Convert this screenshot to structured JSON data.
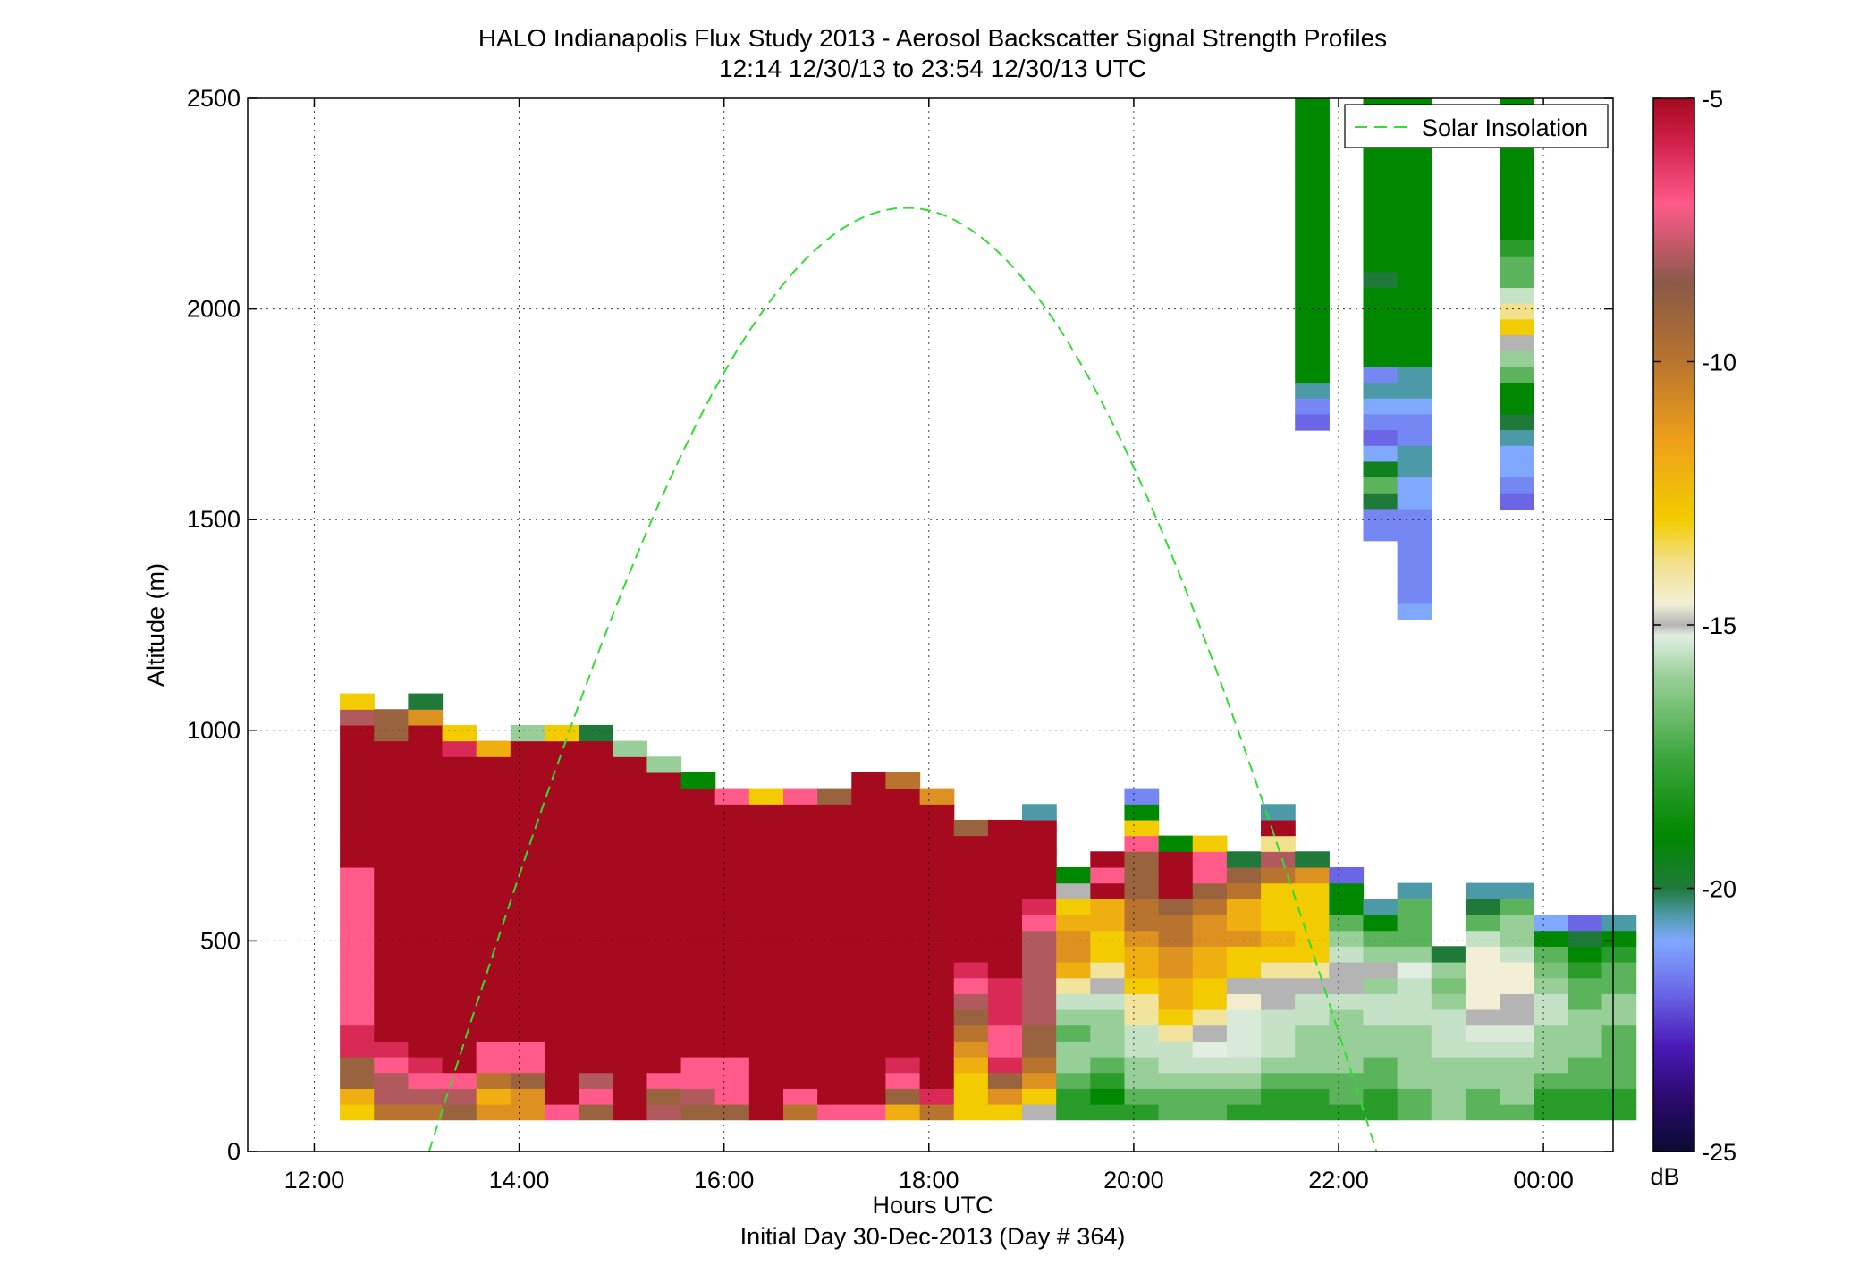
{
  "chart_data": {
    "type": "heatmap",
    "title": "HALO Indianapolis Flux Study 2013 - Aerosol Backscatter Signal Strength Profiles",
    "subtitle": "12:14 12/30/13 to 23:54 12/30/13  UTC",
    "xlabel": "Hours UTC",
    "xlabel2": "Initial Day 30-Dec-2013 (Day # 364)",
    "ylabel": "Altitude (m)",
    "xlim": [
      11.35,
      24.68
    ],
    "ylim": [
      0,
      2500
    ],
    "x_ticks": [
      12,
      14,
      16,
      18,
      20,
      22,
      24
    ],
    "x_tick_labels": [
      "12:00",
      "14:00",
      "16:00",
      "18:00",
      "20:00",
      "22:00",
      "00:00"
    ],
    "y_ticks": [
      0,
      500,
      1000,
      1500,
      2000,
      2500
    ],
    "y_tick_labels": [
      "0",
      "500",
      "1000",
      "1500",
      "2000",
      "2500"
    ],
    "grid": true,
    "legend": {
      "placement": "top-right",
      "entries": [
        {
          "label": "Solar Insolation",
          "color": "#33dd33",
          "style": "dashed"
        }
      ]
    },
    "colorbar": {
      "label": "dB",
      "range": [
        -25,
        -5
      ],
      "ticks": [
        -5,
        -10,
        -15,
        -20,
        -25
      ],
      "tick_labels": [
        "-5",
        "-10",
        "-15",
        "-20",
        "-25"
      ],
      "stops": [
        {
          "v": -25,
          "c": "#0b0b33"
        },
        {
          "v": -24,
          "c": "#2b0a6e"
        },
        {
          "v": -23,
          "c": "#4a1ab8"
        },
        {
          "v": -22,
          "c": "#6a66e6"
        },
        {
          "v": -21,
          "c": "#80a8ff"
        },
        {
          "v": -20.5,
          "c": "#4c9aa8"
        },
        {
          "v": -20,
          "c": "#1f7a3a"
        },
        {
          "v": -19,
          "c": "#008800"
        },
        {
          "v": -17.5,
          "c": "#3da63d"
        },
        {
          "v": -16,
          "c": "#98cf98"
        },
        {
          "v": -15.2,
          "c": "#e2eee2"
        },
        {
          "v": -15,
          "c": "#b4b4b4"
        },
        {
          "v": -14.6,
          "c": "#f3efd6"
        },
        {
          "v": -13.8,
          "c": "#f2e08a"
        },
        {
          "v": -13,
          "c": "#f2cc00"
        },
        {
          "v": -11.5,
          "c": "#eea01a"
        },
        {
          "v": -10,
          "c": "#b8742e"
        },
        {
          "v": -8.5,
          "c": "#8a5a48"
        },
        {
          "v": -7,
          "c": "#ff5a8a"
        },
        {
          "v": -5.8,
          "c": "#d0204a"
        },
        {
          "v": -5,
          "c": "#a50a1e"
        }
      ]
    },
    "grid_cells": {
      "t_start": 12.25,
      "dt": 0.333,
      "z_start": 75,
      "dz": 37.5,
      "cols": [
        [
          -13,
          -12,
          -9,
          -9,
          -6,
          -6,
          -7,
          -7,
          -7,
          -7,
          -7,
          -7,
          -7,
          -7,
          -7,
          -7,
          -5,
          -5,
          -5,
          -5,
          -5,
          -5,
          -5,
          -5,
          -5,
          -8,
          -13
        ],
        [
          -10,
          -8,
          -8,
          -7,
          -6,
          -5,
          -5,
          -5,
          -5,
          -5,
          -5,
          -5,
          -5,
          -5,
          -5,
          -5,
          -5,
          -5,
          -5,
          -5,
          -5,
          -5,
          -5,
          -5,
          -9,
          -9
        ],
        [
          -10,
          -8,
          -7,
          -6,
          -5,
          -5,
          -5,
          -5,
          -5,
          -5,
          -5,
          -5,
          -5,
          -5,
          -5,
          -5,
          -5,
          -5,
          -5,
          -5,
          -5,
          -5,
          -5,
          -5,
          -5,
          -11,
          -20
        ],
        [
          -9,
          -8,
          -7,
          -5,
          -5,
          -5,
          -5,
          -5,
          -5,
          -5,
          -5,
          -5,
          -5,
          -5,
          -5,
          -5,
          -5,
          -5,
          -5,
          -5,
          -5,
          -5,
          -5,
          -6,
          -13
        ],
        [
          -11,
          -12,
          -10,
          -7,
          -7,
          -5,
          -5,
          -5,
          -5,
          -5,
          -5,
          -5,
          -5,
          -5,
          -5,
          -5,
          -5,
          -5,
          -5,
          -5,
          -5,
          -5,
          -5,
          -12
        ],
        [
          -11,
          -11,
          -9,
          -7,
          -7,
          -5,
          -5,
          -5,
          -5,
          -5,
          -5,
          -5,
          -5,
          -5,
          -5,
          -5,
          -5,
          -5,
          -5,
          -5,
          -5,
          -5,
          -5,
          -5,
          -16
        ],
        [
          -7,
          -5,
          -5,
          -5,
          -5,
          -5,
          -5,
          -5,
          -5,
          -5,
          -5,
          -5,
          -5,
          -5,
          -5,
          -5,
          -5,
          -5,
          -5,
          -5,
          -5,
          -5,
          -5,
          -5,
          -13
        ],
        [
          -9,
          -7,
          -8,
          -5,
          -5,
          -5,
          -5,
          -5,
          -5,
          -5,
          -5,
          -5,
          -5,
          -5,
          -5,
          -5,
          -5,
          -5,
          -5,
          -5,
          -5,
          -5,
          -5,
          -5,
          -20
        ],
        [
          -5,
          -5,
          -5,
          -5,
          -5,
          -5,
          -5,
          -5,
          -5,
          -5,
          -5,
          -5,
          -5,
          -5,
          -5,
          -5,
          -5,
          -5,
          -5,
          -5,
          -5,
          -5,
          -5,
          -16
        ],
        [
          -8,
          -9,
          -7,
          -5,
          -5,
          -5,
          -5,
          -5,
          -5,
          -5,
          -5,
          -5,
          -5,
          -5,
          -5,
          -5,
          -5,
          -5,
          -5,
          -5,
          -5,
          -5,
          -16
        ],
        [
          -9,
          -8,
          -7,
          -7,
          -5,
          -5,
          -5,
          -5,
          -5,
          -5,
          -5,
          -5,
          -5,
          -5,
          -5,
          -5,
          -5,
          -5,
          -5,
          -5,
          -5,
          -19
        ],
        [
          -9,
          -7,
          -7,
          -7,
          -5,
          -5,
          -5,
          -5,
          -5,
          -5,
          -5,
          -5,
          -5,
          -5,
          -5,
          -5,
          -5,
          -5,
          -5,
          -5,
          -7
        ],
        [
          -5,
          -5,
          -5,
          -5,
          -5,
          -5,
          -5,
          -5,
          -5,
          -5,
          -5,
          -5,
          -5,
          -5,
          -5,
          -5,
          -5,
          -5,
          -5,
          -5,
          -13
        ],
        [
          -10,
          -7,
          -5,
          -5,
          -5,
          -5,
          -5,
          -5,
          -5,
          -5,
          -5,
          -5,
          -5,
          -5,
          -5,
          -5,
          -5,
          -5,
          -5,
          -5,
          -7
        ],
        [
          -7,
          -5,
          -5,
          -5,
          -5,
          -5,
          -5,
          -5,
          -5,
          -5,
          -5,
          -5,
          -5,
          -5,
          -5,
          -5,
          -5,
          -5,
          -5,
          -5,
          -9
        ],
        [
          -7,
          -5,
          -5,
          -5,
          -5,
          -5,
          -5,
          -5,
          -5,
          -5,
          -5,
          -5,
          -5,
          -5,
          -5,
          -5,
          -5,
          -5,
          -5,
          -5,
          -5,
          -5
        ],
        [
          -12,
          -9,
          -7,
          -6,
          -5,
          -5,
          -5,
          -5,
          -5,
          -5,
          -5,
          -5,
          -5,
          -5,
          -5,
          -5,
          -5,
          -5,
          -5,
          -5,
          -5,
          -10
        ],
        [
          -10,
          -6,
          -5,
          -5,
          -5,
          -5,
          -5,
          -5,
          -5,
          -5,
          -5,
          -5,
          -5,
          -5,
          -5,
          -5,
          -5,
          -5,
          -5,
          -5,
          -11
        ],
        [
          -13,
          -13,
          -13,
          -12,
          -11,
          -10,
          -9,
          -8,
          -7,
          -6,
          -5,
          -5,
          -5,
          -5,
          -5,
          -5,
          -5,
          -5,
          -9
        ],
        [
          -13,
          -11,
          -9,
          -6,
          -7,
          -7,
          -6,
          -6,
          -6,
          -5,
          -5,
          -5,
          -5,
          -5,
          -5,
          -5,
          -5,
          -5,
          -5
        ],
        [
          -15,
          -13,
          -11,
          -10,
          -9,
          -9,
          -8,
          -8,
          -8,
          -8,
          -8,
          -8,
          -7,
          -6,
          -5,
          -5,
          -5,
          -5,
          -5,
          -20.5
        ],
        [
          -18,
          -18,
          -17,
          -16,
          -16,
          -17,
          -16,
          -15.5,
          -14,
          -12,
          -11,
          -11,
          -12,
          -13,
          -15,
          -19
        ],
        [
          -18,
          -19,
          -18,
          -17,
          -16,
          -16,
          -16,
          -15.5,
          -15,
          -14,
          -13,
          -13,
          -12,
          -12,
          -5,
          -7,
          -5
        ],
        [
          -18,
          -17,
          -16,
          -16,
          -15.5,
          -15.5,
          -14,
          -14,
          -13,
          -12,
          -12,
          -11,
          -10,
          -10,
          -9,
          -9,
          -9,
          -7,
          -13,
          -19,
          -21.5
        ],
        [
          -17,
          -17,
          -16,
          -15.5,
          -15.5,
          -14,
          -13,
          -12,
          -12,
          -11,
          -11,
          -10,
          -10,
          -9,
          -5,
          -5,
          -5,
          -19
        ],
        [
          -17,
          -17,
          -16,
          -15.5,
          -15.2,
          -15,
          -14,
          -13,
          -13,
          -12,
          -12,
          -11,
          -11,
          -10,
          -9,
          -7,
          -7,
          -13
        ],
        [
          -18,
          -17,
          -16,
          -15.5,
          -15.3,
          -15.3,
          -15.3,
          -14.5,
          -15,
          -13,
          -13,
          -11,
          -12,
          -12,
          -10,
          -9,
          -20
        ],
        [
          -18,
          -18,
          -17,
          -16,
          -15.5,
          -15.5,
          -15.5,
          -15,
          -15,
          -14,
          -13,
          -12,
          -13,
          -13,
          -13,
          -10,
          -8,
          -13.8,
          -5,
          -20.5
        ],
        [
          -18,
          -18,
          -17,
          -16,
          -16,
          -16,
          -15.5,
          -15.5,
          -15,
          -14,
          -13,
          -13,
          -13,
          -13,
          -13,
          -11,
          -20
        ],
        [
          -18,
          -17,
          -17,
          -16,
          -16,
          -16,
          -16,
          -15.5,
          -15,
          -15,
          -15.5,
          -16,
          -17,
          -19,
          -19,
          -22
        ],
        [
          -18,
          -18,
          -17,
          -17,
          -16,
          -16,
          -15.5,
          -15.5,
          -16,
          -15,
          -16,
          -17,
          -19,
          -20.5
        ],
        [
          -17,
          -17,
          -16,
          -16,
          -16,
          -16,
          -15.5,
          -15.5,
          -15.5,
          -15.2,
          -16,
          -17,
          -17,
          -17,
          -20.5
        ],
        [
          -16,
          -16,
          -16,
          -16,
          -15.5,
          -15.5,
          -15.5,
          -16,
          -16.5,
          -16,
          -20
        ],
        [
          -17,
          -17,
          -16,
          -16,
          -15.5,
          -15.3,
          -15,
          -14.6,
          -14.6,
          -14.6,
          -14.6,
          -15.5,
          -17,
          -20,
          -20.5
        ],
        [
          -17,
          -16,
          -16,
          -16,
          -15.5,
          -15.3,
          -15,
          -15,
          -14.6,
          -14.6,
          -15.5,
          -16,
          -16,
          -17,
          -20.5
        ],
        [
          -18,
          -18,
          -17,
          -16,
          -16,
          -16,
          -15.5,
          -15.5,
          -16,
          -16.5,
          -17,
          -19,
          -21
        ],
        [
          -18,
          -18,
          -17,
          -17,
          -16,
          -16,
          -16,
          -17,
          -17,
          -18,
          -19,
          -20,
          -22
        ],
        [
          -18,
          -18,
          -17,
          -17,
          -17,
          -17,
          -16,
          -16,
          -17,
          -17,
          -18,
          -19,
          -20.5
        ]
      ],
      "upper": [
        {
          "col": 28,
          "z_top": 2500,
          "vals": [
            -19,
            -19,
            -19,
            -19,
            -19,
            -19,
            -19,
            -19,
            -19,
            -19,
            -19,
            -19,
            -19,
            -19,
            -19,
            -19,
            -19,
            -19,
            -20.5,
            -21.5,
            -22
          ]
        },
        {
          "col": 30,
          "z_top": 2500,
          "vals": [
            -19,
            -17,
            -19,
            -19,
            -19,
            -19,
            -19,
            -19,
            -19,
            -19,
            -19,
            -20,
            -19,
            -19,
            -19,
            -19,
            -19,
            -21.5,
            -20.5,
            -21,
            -21.5,
            -22,
            -21,
            -19.5,
            -17,
            -20,
            -21.5,
            -21.5
          ]
        },
        {
          "col": 31,
          "z_top": 2500,
          "vals": [
            -19,
            -19,
            -19,
            -19,
            -19,
            -19,
            -19,
            -19,
            -19,
            -19,
            -19,
            -19,
            -19,
            -19,
            -19,
            -19,
            -19,
            -20.5,
            -20.5,
            -21,
            -21.5,
            -21.5,
            -20.5,
            -20.5,
            -21,
            -21,
            -21.5,
            -21.5,
            -21.5,
            -21.5,
            -21.5,
            -21.5,
            -21
          ]
        },
        {
          "col": 34,
          "z_top": 2500,
          "vals": [
            -19,
            -19,
            -19,
            -19,
            -19,
            -19,
            -19,
            -19,
            -19,
            -18,
            -17,
            -17,
            -15.5,
            -13.8,
            -13,
            -15,
            -16,
            -17,
            -19,
            -19,
            -20,
            -20.5,
            -21,
            -21,
            -21.5,
            -22
          ]
        }
      ]
    },
    "solar_insolation": {
      "x_start": 13.12,
      "x_peak": 17.78,
      "x_end": 22.37,
      "y_peak": 2240
    }
  }
}
